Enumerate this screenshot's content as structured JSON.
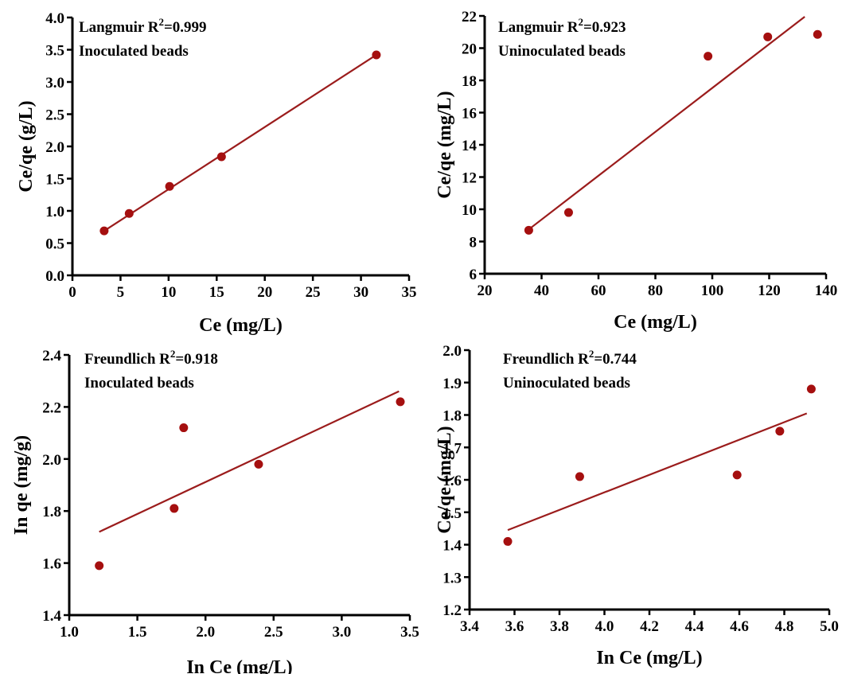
{
  "chart_data": [
    {
      "type": "scatter",
      "annotation": [
        "Langmuir R",
        "2",
        "=0.999",
        "Inoculated beads"
      ],
      "xlabel": "Ce (mg/L)",
      "ylabel": "Ce/qe (g/L)",
      "xlim": [
        0,
        35
      ],
      "ylim": [
        0,
        4.0
      ],
      "xticks": [
        "0",
        "5",
        "10",
        "15",
        "20",
        "25",
        "30",
        "35"
      ],
      "xtick_values": [
        0,
        5,
        10,
        15,
        20,
        25,
        30,
        35
      ],
      "yticks": [
        "0.0",
        "0.5",
        "1.0",
        "1.5",
        "2.0",
        "2.5",
        "3.0",
        "3.5",
        "4.0"
      ],
      "ytick_values": [
        0,
        0.5,
        1.0,
        1.5,
        2.0,
        2.5,
        3.0,
        3.5,
        4.0
      ],
      "series": [
        {
          "points": [
            [
              3.3,
              0.69
            ],
            [
              5.9,
              0.96
            ],
            [
              10.1,
              1.38
            ],
            [
              15.5,
              1.84
            ],
            [
              31.6,
              3.42
            ]
          ],
          "fit": [
            [
              3.2,
              0.68
            ],
            [
              31.6,
              3.42
            ]
          ]
        }
      ],
      "colors": {
        "points": "#a50f0f",
        "fit": "#9b1c1c"
      }
    },
    {
      "type": "scatter",
      "annotation": [
        "Langmuir R",
        "2",
        "=0.923",
        "Uninoculated beads"
      ],
      "xlabel": "Ce (mg/L)",
      "ylabel": "Ce/qe (mg/L)",
      "xlim": [
        20,
        140
      ],
      "ylim": [
        6,
        22
      ],
      "xticks": [
        "20",
        "40",
        "60",
        "80",
        "100",
        "120",
        "140"
      ],
      "xtick_values": [
        20,
        40,
        60,
        80,
        100,
        120,
        140
      ],
      "yticks": [
        "6",
        "8",
        "10",
        "12",
        "14",
        "16",
        "18",
        "20",
        "22"
      ],
      "ytick_values": [
        6,
        8,
        10,
        12,
        14,
        16,
        18,
        20,
        22
      ],
      "series": [
        {
          "points": [
            [
              35.5,
              8.7
            ],
            [
              49.5,
              9.8
            ],
            [
              98.5,
              19.5
            ],
            [
              119.5,
              20.7
            ],
            [
              137.0,
              20.85
            ]
          ],
          "fit": [
            [
              35.5,
              8.75
            ],
            [
              132.5,
              21.95
            ]
          ]
        }
      ],
      "colors": {
        "points": "#a50f0f",
        "fit": "#9b1c1c"
      }
    },
    {
      "type": "scatter",
      "annotation": [
        "Freundlich R",
        "2",
        "=0.918",
        "Inoculated beads"
      ],
      "xlabel": "In Ce (mg/L)",
      "ylabel": "In qe (mg/g)",
      "xlim": [
        1.0,
        3.5
      ],
      "ylim": [
        1.4,
        2.4
      ],
      "xticks": [
        "1.0",
        "1.5",
        "2.0",
        "2.5",
        "3.0",
        "3.5"
      ],
      "xtick_values": [
        1.0,
        1.5,
        2.0,
        2.5,
        3.0,
        3.5
      ],
      "yticks": [
        "1.4",
        "1.6",
        "1.8",
        "2.0",
        "2.2",
        "2.4"
      ],
      "ytick_values": [
        1.4,
        1.6,
        1.8,
        2.0,
        2.2,
        2.4
      ],
      "series": [
        {
          "points": [
            [
              1.22,
              1.59
            ],
            [
              1.77,
              1.81
            ],
            [
              1.84,
              2.12
            ],
            [
              2.39,
              1.98
            ],
            [
              3.43,
              2.22
            ]
          ],
          "fit": [
            [
              1.22,
              1.72
            ],
            [
              3.42,
              2.26
            ]
          ]
        }
      ],
      "colors": {
        "points": "#a50f0f",
        "fit": "#9b1c1c"
      }
    },
    {
      "type": "scatter",
      "annotation": [
        "Freundlich R",
        "2",
        "=0.744",
        "Uninoculated beads"
      ],
      "xlabel": "In Ce (mg/L)",
      "ylabel": "Ce/qe (mg/L)",
      "xlim": [
        3.4,
        5.0
      ],
      "ylim": [
        1.2,
        2.0
      ],
      "xticks": [
        "3.4",
        "3.6",
        "3.8",
        "4.0",
        "4.2",
        "4.4",
        "4.6",
        "4.8",
        "5.0"
      ],
      "xtick_values": [
        3.4,
        3.6,
        3.8,
        4.0,
        4.2,
        4.4,
        4.6,
        4.8,
        5.0
      ],
      "yticks": [
        "1.2",
        "1.3",
        "1.4",
        "1.5",
        "1.6",
        "1.7",
        "1.8",
        "1.9",
        "2.0"
      ],
      "ytick_values": [
        1.2,
        1.3,
        1.4,
        1.5,
        1.6,
        1.7,
        1.8,
        1.9,
        2.0
      ],
      "series": [
        {
          "points": [
            [
              3.57,
              1.41
            ],
            [
              3.89,
              1.61
            ],
            [
              4.59,
              1.615
            ],
            [
              4.78,
              1.75
            ],
            [
              4.92,
              1.88
            ]
          ],
          "fit": [
            [
              3.57,
              1.445
            ],
            [
              4.9,
              1.805
            ]
          ]
        }
      ],
      "colors": {
        "points": "#a50f0f",
        "fit": "#9b1c1c"
      }
    }
  ]
}
